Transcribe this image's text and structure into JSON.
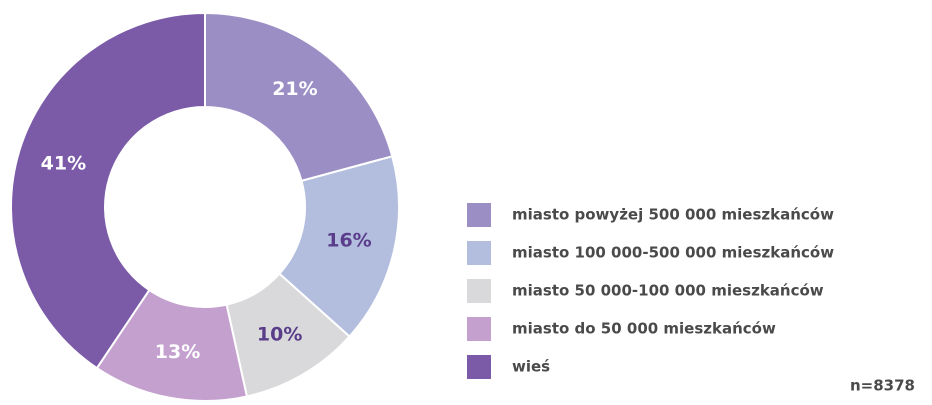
{
  "chart_data": {
    "type": "donut",
    "categories": [
      "miasto powyżej 500 000 mieszkańców",
      "miasto 100 000-500 000 mieszkańców",
      "miasto 50 000-100 000 mieszkańców",
      "miasto do 50 000 mieszkańców",
      "wieś"
    ],
    "values": [
      21,
      16,
      10,
      13,
      41
    ],
    "value_labels": [
      "21%",
      "16%",
      "10%",
      "13%",
      "41%"
    ],
    "colors": [
      "#9a8ec4",
      "#b3bedf",
      "#d9d9dc",
      "#c4a0cf",
      "#7b5ba8"
    ],
    "label_colors": [
      "#ffffff",
      "#5a3d8a",
      "#5a3d8a",
      "#ffffff",
      "#ffffff"
    ],
    "note": "n=8378"
  }
}
